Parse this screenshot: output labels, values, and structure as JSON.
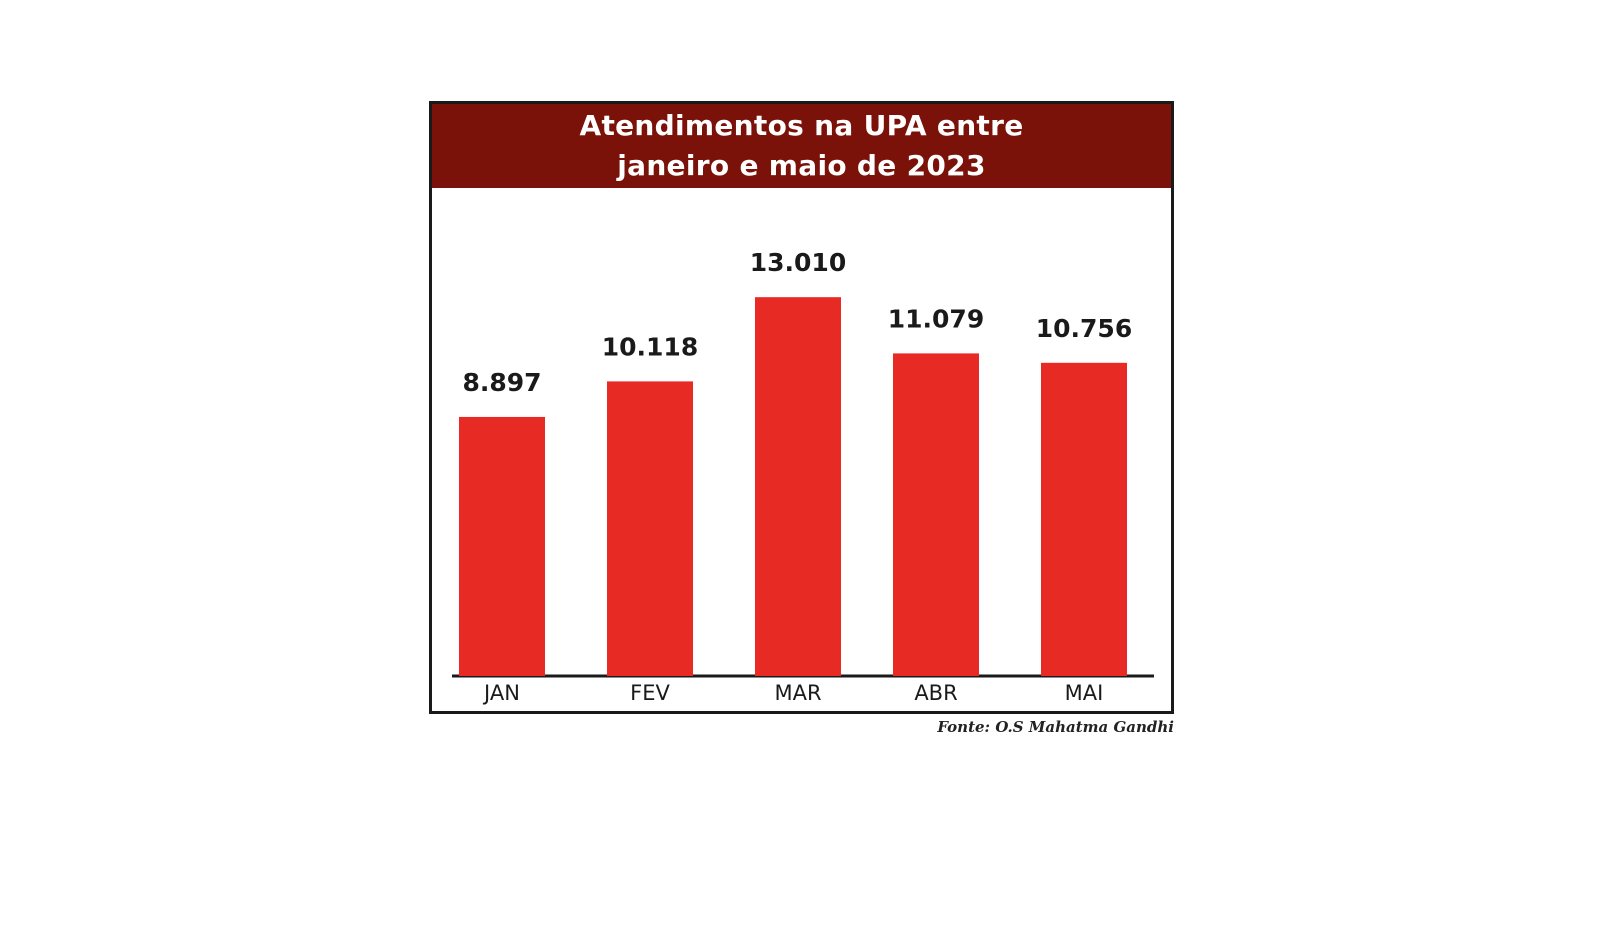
{
  "chart_data": {
    "type": "bar",
    "title": "Atendimentos na UPA entre\njaneiro e maio de 2023",
    "categories": [
      "JAN",
      "FEV",
      "MAR",
      "ABR",
      "MAI"
    ],
    "values": [
      8897,
      10118,
      13010,
      11079,
      10756
    ],
    "value_labels": [
      "8.897",
      "10.118",
      "13.010",
      "11.079",
      "10.756"
    ],
    "xlabel": "",
    "ylabel": "",
    "ylim": [
      0,
      15000
    ],
    "grid": false,
    "legend": "none",
    "colors": {
      "bar": "#e82a24",
      "title_band": "#7a1209",
      "axis": "#1a1a1a",
      "value_label": "#1a1a1a"
    }
  },
  "source": "Fonte: O.S Mahatma Gandhi"
}
